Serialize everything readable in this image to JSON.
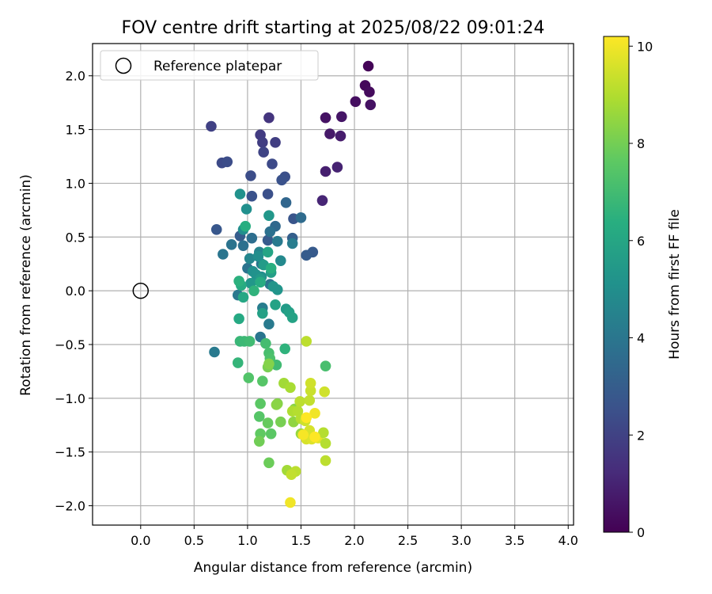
{
  "chart_data": {
    "type": "scatter",
    "title": "FOV centre drift starting at 2025/08/22 09:01:24",
    "xlabel": "Angular distance from reference (arcmin)",
    "ylabel": "Rotation from reference (arcmin)",
    "xlim": [
      -0.45,
      4.05
    ],
    "ylim": [
      -2.18,
      2.3
    ],
    "x_ticks": [
      0.0,
      0.5,
      1.0,
      1.5,
      2.0,
      2.5,
      3.0,
      3.5,
      4.0
    ],
    "x_tick_labels": [
      "0.0",
      "0.5",
      "1.0",
      "1.5",
      "2.0",
      "2.5",
      "3.0",
      "3.5",
      "4.0"
    ],
    "y_ticks": [
      2.0,
      1.5,
      1.0,
      0.5,
      0.0,
      -0.5,
      -1.0,
      -1.5,
      -2.0
    ],
    "y_tick_labels": [
      "2.0",
      "1.5",
      "1.0",
      "0.5",
      "0.0",
      "−0.5",
      "−1.0",
      "−1.5",
      "−2.0"
    ],
    "grid": true,
    "legend": {
      "position": "top-left",
      "entries": [
        "Reference platepar"
      ]
    },
    "reference_point": {
      "x": 0.0,
      "y": 0.0,
      "label": "Reference platepar"
    },
    "colorbar": {
      "label": "Hours from first FF file",
      "range": [
        0,
        10.2
      ],
      "ticks": [
        0,
        2,
        4,
        6,
        8,
        10
      ],
      "tick_labels": [
        "0",
        "2",
        "4",
        "6",
        "8",
        "10"
      ],
      "colormap": "viridis"
    },
    "series": [
      {
        "points": [
          {
            "x": 2.13,
            "y": 2.09,
            "h": 0.1
          },
          {
            "x": 2.1,
            "y": 1.91,
            "h": 0.2
          },
          {
            "x": 2.14,
            "y": 1.85,
            "h": 0.3
          },
          {
            "x": 2.01,
            "y": 1.76,
            "h": 0.4
          },
          {
            "x": 2.15,
            "y": 1.73,
            "h": 0.5
          },
          {
            "x": 1.73,
            "y": 1.61,
            "h": 0.5
          },
          {
            "x": 1.88,
            "y": 1.62,
            "h": 0.6
          },
          {
            "x": 1.77,
            "y": 1.46,
            "h": 0.7
          },
          {
            "x": 1.87,
            "y": 1.44,
            "h": 0.8
          },
          {
            "x": 1.73,
            "y": 1.11,
            "h": 0.9
          },
          {
            "x": 1.84,
            "y": 1.15,
            "h": 1.0
          },
          {
            "x": 1.7,
            "y": 0.84,
            "h": 1.1
          },
          {
            "x": 1.2,
            "y": 1.61,
            "h": 1.6
          },
          {
            "x": 1.12,
            "y": 1.45,
            "h": 1.8
          },
          {
            "x": 0.66,
            "y": 1.53,
            "h": 2.0
          },
          {
            "x": 1.14,
            "y": 1.38,
            "h": 1.9
          },
          {
            "x": 1.26,
            "y": 1.38,
            "h": 1.9
          },
          {
            "x": 1.15,
            "y": 1.29,
            "h": 2.1
          },
          {
            "x": 0.76,
            "y": 1.19,
            "h": 2.3
          },
          {
            "x": 0.81,
            "y": 1.2,
            "h": 2.4
          },
          {
            "x": 1.23,
            "y": 1.18,
            "h": 2.3
          },
          {
            "x": 1.03,
            "y": 1.07,
            "h": 2.4
          },
          {
            "x": 1.35,
            "y": 1.06,
            "h": 2.5
          },
          {
            "x": 1.32,
            "y": 1.03,
            "h": 2.6
          },
          {
            "x": 1.04,
            "y": 0.88,
            "h": 2.6
          },
          {
            "x": 1.19,
            "y": 0.9,
            "h": 2.5
          },
          {
            "x": 1.43,
            "y": 0.67,
            "h": 2.7
          },
          {
            "x": 0.71,
            "y": 0.57,
            "h": 2.8
          },
          {
            "x": 1.61,
            "y": 0.36,
            "h": 2.9
          },
          {
            "x": 1.55,
            "y": 0.33,
            "h": 3.0
          },
          {
            "x": 0.93,
            "y": 0.51,
            "h": 3.0
          },
          {
            "x": 1.19,
            "y": 0.47,
            "h": 2.9
          },
          {
            "x": 1.42,
            "y": 0.49,
            "h": 3.1
          },
          {
            "x": 1.36,
            "y": 0.82,
            "h": 3.4
          },
          {
            "x": 1.5,
            "y": 0.68,
            "h": 3.6
          },
          {
            "x": 1.26,
            "y": 0.6,
            "h": 3.5
          },
          {
            "x": 1.21,
            "y": 0.55,
            "h": 3.8
          },
          {
            "x": 1.04,
            "y": 0.49,
            "h": 3.7
          },
          {
            "x": 0.96,
            "y": 0.42,
            "h": 3.8
          },
          {
            "x": 0.85,
            "y": 0.43,
            "h": 3.9
          },
          {
            "x": 0.77,
            "y": 0.34,
            "h": 4.0
          },
          {
            "x": 1.0,
            "y": 0.21,
            "h": 3.9
          },
          {
            "x": 1.21,
            "y": 0.06,
            "h": 4.0
          },
          {
            "x": 1.28,
            "y": 0.46,
            "h": 4.2
          },
          {
            "x": 1.42,
            "y": 0.44,
            "h": 4.3
          },
          {
            "x": 1.13,
            "y": 0.25,
            "h": 4.0
          },
          {
            "x": 0.91,
            "y": -0.04,
            "h": 4.1
          },
          {
            "x": 1.2,
            "y": -0.31,
            "h": 4.2
          },
          {
            "x": 1.14,
            "y": -0.16,
            "h": 4.3
          },
          {
            "x": 1.12,
            "y": -0.43,
            "h": 4.0
          },
          {
            "x": 0.69,
            "y": -0.57,
            "h": 4.2
          },
          {
            "x": 1.11,
            "y": 0.36,
            "h": 4.6
          },
          {
            "x": 1.02,
            "y": 0.3,
            "h": 4.7
          },
          {
            "x": 1.31,
            "y": 0.28,
            "h": 4.8
          },
          {
            "x": 0.96,
            "y": 0.57,
            "h": 5.0
          },
          {
            "x": 0.99,
            "y": 0.76,
            "h": 5.1
          },
          {
            "x": 0.93,
            "y": 0.9,
            "h": 5.2
          },
          {
            "x": 1.1,
            "y": 0.32,
            "h": 5.0
          },
          {
            "x": 1.13,
            "y": 0.13,
            "h": 5.0
          },
          {
            "x": 1.05,
            "y": 0.18,
            "h": 5.1
          },
          {
            "x": 1.08,
            "y": 0.15,
            "h": 5.2
          },
          {
            "x": 1.24,
            "y": 0.04,
            "h": 5.3
          },
          {
            "x": 1.28,
            "y": 0.01,
            "h": 5.3
          },
          {
            "x": 1.03,
            "y": 0.07,
            "h": 5.4
          },
          {
            "x": 1.12,
            "y": 0.11,
            "h": 5.5
          },
          {
            "x": 1.2,
            "y": 0.7,
            "h": 5.4
          },
          {
            "x": 1.15,
            "y": 0.24,
            "h": 5.6
          },
          {
            "x": 1.22,
            "y": 0.17,
            "h": 5.7
          },
          {
            "x": 1.36,
            "y": -0.17,
            "h": 5.6
          },
          {
            "x": 1.39,
            "y": -0.2,
            "h": 5.8
          },
          {
            "x": 1.42,
            "y": -0.25,
            "h": 5.9
          },
          {
            "x": 1.26,
            "y": -0.13,
            "h": 5.9
          },
          {
            "x": 1.14,
            "y": -0.21,
            "h": 5.8
          },
          {
            "x": 0.96,
            "y": -0.06,
            "h": 6.1
          },
          {
            "x": 0.92,
            "y": -0.26,
            "h": 6.2
          },
          {
            "x": 0.94,
            "y": 0.05,
            "h": 6.3
          },
          {
            "x": 1.12,
            "y": 0.08,
            "h": 6.3
          },
          {
            "x": 1.22,
            "y": 0.21,
            "h": 6.4
          },
          {
            "x": 1.19,
            "y": 0.36,
            "h": 6.0
          },
          {
            "x": 0.98,
            "y": 0.6,
            "h": 6.4
          },
          {
            "x": 0.92,
            "y": 0.09,
            "h": 6.5
          },
          {
            "x": 1.06,
            "y": 0.0,
            "h": 6.6
          },
          {
            "x": 1.35,
            "y": -0.54,
            "h": 6.6
          },
          {
            "x": 0.91,
            "y": -0.67,
            "h": 6.7
          },
          {
            "x": 0.93,
            "y": -0.47,
            "h": 6.8
          },
          {
            "x": 0.97,
            "y": -0.47,
            "h": 6.9
          },
          {
            "x": 1.02,
            "y": -0.47,
            "h": 7.0
          },
          {
            "x": 1.17,
            "y": -0.49,
            "h": 7.1
          },
          {
            "x": 1.2,
            "y": -0.58,
            "h": 7.2
          },
          {
            "x": 1.21,
            "y": -0.63,
            "h": 7.3
          },
          {
            "x": 1.27,
            "y": -0.69,
            "h": 7.0
          },
          {
            "x": 1.73,
            "y": -0.7,
            "h": 7.2
          },
          {
            "x": 1.01,
            "y": -0.81,
            "h": 7.4
          },
          {
            "x": 1.14,
            "y": -0.84,
            "h": 7.5
          },
          {
            "x": 1.12,
            "y": -1.05,
            "h": 7.6
          },
          {
            "x": 1.11,
            "y": -1.17,
            "h": 7.5
          },
          {
            "x": 1.12,
            "y": -1.33,
            "h": 7.7
          },
          {
            "x": 1.11,
            "y": -1.4,
            "h": 8.0
          },
          {
            "x": 1.2,
            "y": -1.6,
            "h": 7.9
          },
          {
            "x": 1.19,
            "y": -1.23,
            "h": 7.8
          },
          {
            "x": 1.22,
            "y": -1.33,
            "h": 7.6
          },
          {
            "x": 1.19,
            "y": -0.71,
            "h": 8.1
          },
          {
            "x": 1.2,
            "y": -0.68,
            "h": 8.3
          },
          {
            "x": 1.28,
            "y": -1.05,
            "h": 8.3
          },
          {
            "x": 1.31,
            "y": -1.22,
            "h": 8.1
          },
          {
            "x": 1.27,
            "y": -1.06,
            "h": 8.4
          },
          {
            "x": 1.44,
            "y": -1.1,
            "h": 8.4
          },
          {
            "x": 1.43,
            "y": -1.22,
            "h": 8.5
          },
          {
            "x": 1.5,
            "y": -1.33,
            "h": 8.6
          },
          {
            "x": 1.37,
            "y": -1.67,
            "h": 8.8
          },
          {
            "x": 1.45,
            "y": -1.68,
            "h": 9.2
          },
          {
            "x": 1.41,
            "y": -1.71,
            "h": 9.3
          },
          {
            "x": 1.34,
            "y": -0.86,
            "h": 8.8
          },
          {
            "x": 1.4,
            "y": -0.9,
            "h": 8.9
          },
          {
            "x": 1.42,
            "y": -1.12,
            "h": 9.0
          },
          {
            "x": 1.47,
            "y": -1.12,
            "h": 9.1
          },
          {
            "x": 1.5,
            "y": -1.19,
            "h": 9.1
          },
          {
            "x": 1.49,
            "y": -1.03,
            "h": 9.2
          },
          {
            "x": 1.58,
            "y": -1.02,
            "h": 9.3
          },
          {
            "x": 1.59,
            "y": -0.93,
            "h": 9.4
          },
          {
            "x": 1.54,
            "y": -1.21,
            "h": 9.5
          },
          {
            "x": 1.55,
            "y": -1.38,
            "h": 9.6
          },
          {
            "x": 1.58,
            "y": -1.3,
            "h": 9.6
          },
          {
            "x": 1.6,
            "y": -1.38,
            "h": 9.7
          },
          {
            "x": 1.66,
            "y": -1.37,
            "h": 9.8
          },
          {
            "x": 1.71,
            "y": -1.32,
            "h": 9.1
          },
          {
            "x": 1.73,
            "y": -1.42,
            "h": 9.1
          },
          {
            "x": 1.73,
            "y": -1.58,
            "h": 9.2
          },
          {
            "x": 1.72,
            "y": -0.94,
            "h": 9.5
          },
          {
            "x": 1.55,
            "y": -0.47,
            "h": 9.2
          },
          {
            "x": 1.59,
            "y": -0.86,
            "h": 9.5
          },
          {
            "x": 1.63,
            "y": -1.14,
            "h": 10.0
          },
          {
            "x": 1.4,
            "y": -1.97,
            "h": 10.0
          },
          {
            "x": 1.55,
            "y": -1.18,
            "h": 10.2
          },
          {
            "x": 1.52,
            "y": -1.34,
            "h": 10.1
          },
          {
            "x": 1.63,
            "y": -1.36,
            "h": 10.2
          }
        ]
      }
    ]
  }
}
